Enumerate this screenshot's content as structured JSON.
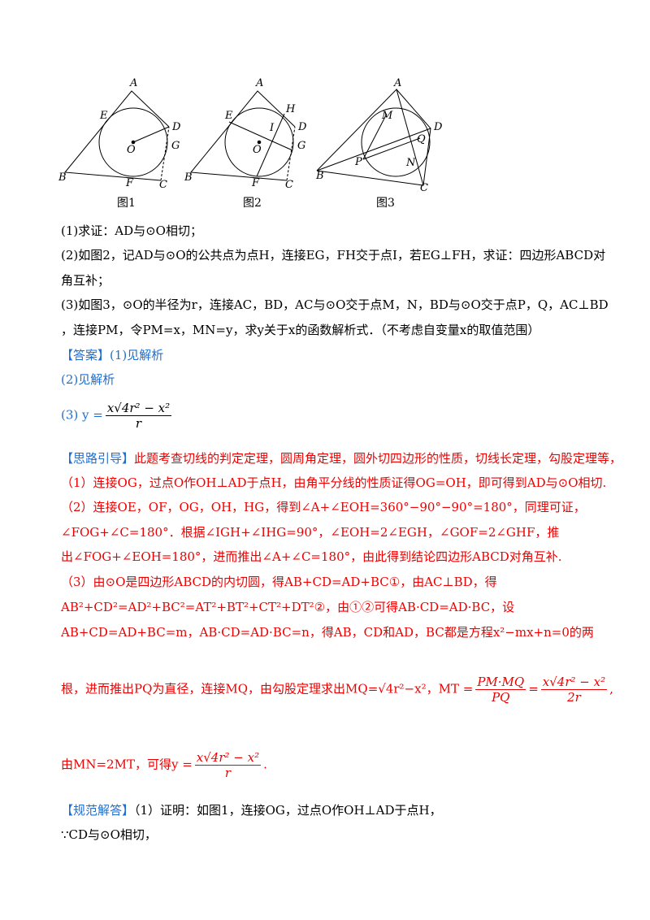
{
  "figures": [
    {
      "caption": "图1",
      "labels": [
        "A",
        "E",
        "D",
        "O",
        "G",
        "B",
        "F",
        "C"
      ]
    },
    {
      "caption": "图2",
      "labels": [
        "A",
        "E",
        "H",
        "I",
        "D",
        "O",
        "G",
        "B",
        "F",
        "C"
      ]
    },
    {
      "caption": "图3",
      "labels": [
        "A",
        "M",
        "D",
        "Q",
        "P",
        "N",
        "B",
        "C"
      ]
    }
  ],
  "question": [
    "(1)求证：AD与⊙O相切；",
    "(2)如图2，记AD与⊙O的公共点为点H，连接EG，FH交于点I，若EG⊥FH，求证：四边形ABCD对",
    "角互补；",
    "(3)如图3，⊙O的半径为r，连接AC，BD，AC与⊙O交于点M，N，BD与⊙O交于点P，Q，AC⊥BD",
    "，连接PM，令PM=x，MN=y，求y关于x的函数解析式．（不考虑自变量x的取值范围）"
  ],
  "answer": {
    "tag": "【答案】",
    "part1": "(1)见解析",
    "part2": "(2)见解析",
    "part3_lhs": "(3) y =",
    "part3_num": "x√4r² − x²",
    "part3_den": "r"
  },
  "analysis": {
    "tag": "【思路引导】",
    "lines": [
      "此题考查切线的判定定理，圆周角定理，圆外切四边形的性质，切线长定理，勾股定理等，",
      "（1）连接OG，过点O作OH⊥AD于点H，由角平分线的性质证得OG=OH，即可得到AD与⊙O相切.",
      "（2）连接OE，OF，OG，OH，HG，得到∠A+∠EOH=360°−90°−90°=180°，同理可证，",
      "∠FOG+∠C=180°．根据∠IGH+∠IHG=90°，∠EOH=2∠EGH，∠GOF=2∠GHF，推",
      "出∠FOG+∠EOH=180°，进而推出∠A+∠C=180°，由此得到结论四边形ABCD对角互补.",
      "（3）由⊙O是四边形ABCD的内切圆，得AB+CD=AD+BC①，由AC⊥BD，得",
      "AB²+CD²=AD²+BC²=AT²+BT²+CT²+DT²②，由①②可得AB·CD=AD·BC，设",
      "AB+CD=AD+BC=m，AB·CD=AD·BC=n，得AB，CD和AD，BC都是方程x²−mx+n=0的两"
    ],
    "frac_line": {
      "text": "根，进而推出PQ为直径，连接MQ，由勾股定理求出MQ=√4r²−x²，MT =",
      "f1_num": "PM·MQ",
      "f1_den": "PQ",
      "eq": "=",
      "f2_num": "x√4r² − x²",
      "f2_den": "2r",
      "end": ","
    },
    "last_line": {
      "text": "由MN=2MT，可得y =",
      "num": "x√4r² − x²",
      "den": "r",
      "end": "."
    }
  },
  "solution": {
    "tag": "【规范解答】",
    "lines": [
      "（1）证明：如图1，连接OG，过点O作OH⊥AD于点H，",
      "∵CD与⊙O相切，"
    ]
  }
}
